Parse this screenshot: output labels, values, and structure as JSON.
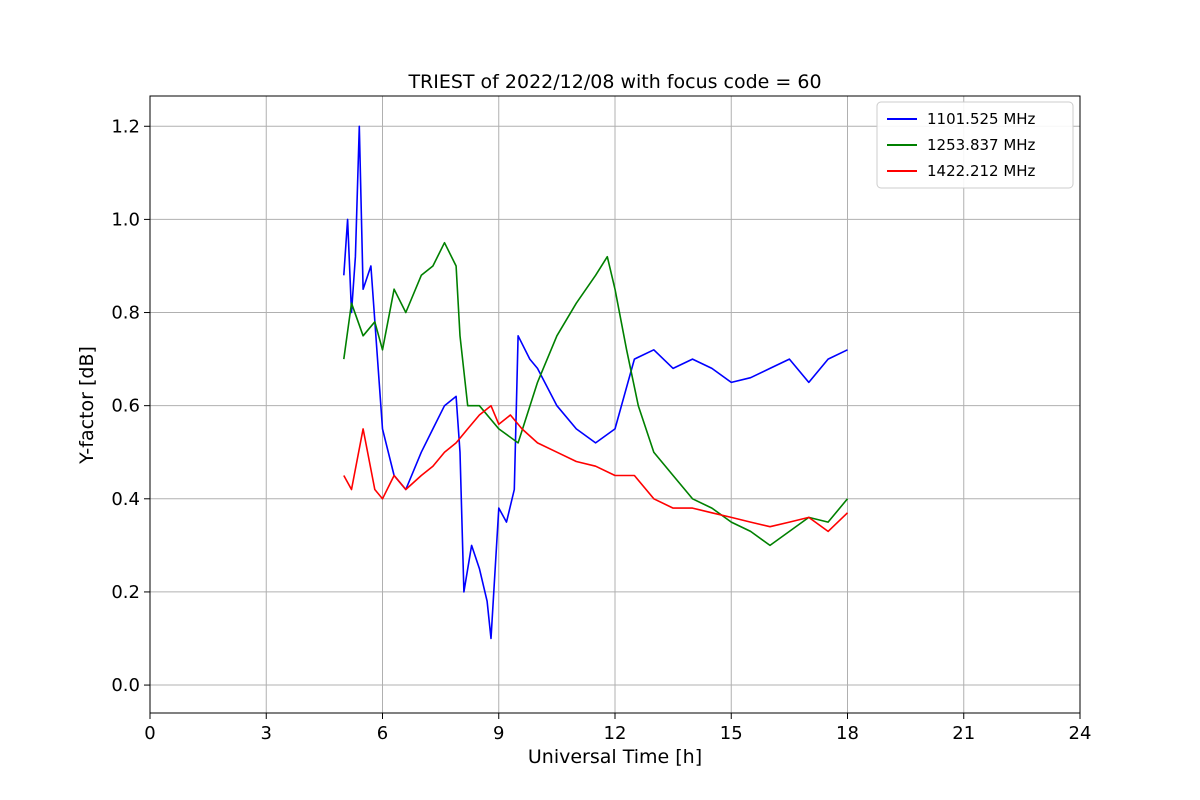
{
  "chart_data": {
    "type": "line",
    "title": "TRIEST of 2022/12/08 with focus code = 60",
    "xlabel": "Universal Time [h]",
    "ylabel": "Y-factor [dB]",
    "xlim": [
      0,
      24
    ],
    "ylim": [
      -0.06,
      1.265
    ],
    "xticks": [
      0,
      3,
      6,
      9,
      12,
      15,
      18,
      21,
      24
    ],
    "yticks": [
      0.0,
      0.2,
      0.4,
      0.6,
      0.8,
      1.0,
      1.2
    ],
    "ytick_labels": [
      "0.0",
      "0.2",
      "0.4",
      "0.6",
      "0.8",
      "1.0",
      "1.2"
    ],
    "grid": true,
    "legend_position": "upper right",
    "series": [
      {
        "name": "1101.525 MHz",
        "color": "#0000ff",
        "x": [
          5.0,
          5.1,
          5.2,
          5.3,
          5.4,
          5.5,
          5.7,
          6.0,
          6.3,
          6.6,
          7.0,
          7.3,
          7.6,
          7.9,
          8.0,
          8.1,
          8.3,
          8.5,
          8.7,
          8.8,
          9.0,
          9.2,
          9.4,
          9.5,
          9.8,
          10.0,
          10.5,
          11.0,
          11.5,
          12.0,
          12.5,
          13.0,
          13.5,
          14.0,
          14.5,
          15.0,
          15.5,
          16.0,
          16.5,
          17.0,
          17.5,
          18.0
        ],
        "values": [
          0.88,
          1.0,
          0.8,
          0.92,
          1.2,
          0.85,
          0.9,
          0.55,
          0.45,
          0.42,
          0.5,
          0.55,
          0.6,
          0.62,
          0.5,
          0.2,
          0.3,
          0.25,
          0.18,
          0.1,
          0.38,
          0.35,
          0.42,
          0.75,
          0.7,
          0.68,
          0.6,
          0.55,
          0.52,
          0.55,
          0.7,
          0.72,
          0.68,
          0.7,
          0.68,
          0.65,
          0.66,
          0.68,
          0.7,
          0.65,
          0.7,
          0.72
        ]
      },
      {
        "name": "1253.837 MHz",
        "color": "#008000",
        "x": [
          5.0,
          5.2,
          5.5,
          5.8,
          6.0,
          6.3,
          6.6,
          7.0,
          7.3,
          7.6,
          7.9,
          8.0,
          8.2,
          8.5,
          9.0,
          9.5,
          10.0,
          10.5,
          11.0,
          11.5,
          11.8,
          12.0,
          12.3,
          12.6,
          13.0,
          13.5,
          14.0,
          14.5,
          15.0,
          15.5,
          16.0,
          16.5,
          17.0,
          17.5,
          18.0
        ],
        "values": [
          0.7,
          0.82,
          0.75,
          0.78,
          0.72,
          0.85,
          0.8,
          0.88,
          0.9,
          0.95,
          0.9,
          0.75,
          0.6,
          0.6,
          0.55,
          0.52,
          0.65,
          0.75,
          0.82,
          0.88,
          0.92,
          0.85,
          0.72,
          0.6,
          0.5,
          0.45,
          0.4,
          0.38,
          0.35,
          0.33,
          0.3,
          0.33,
          0.36,
          0.35,
          0.4
        ]
      },
      {
        "name": "1422.212 MHz",
        "color": "#ff0000",
        "x": [
          5.0,
          5.2,
          5.5,
          5.8,
          6.0,
          6.3,
          6.6,
          7.0,
          7.3,
          7.6,
          7.9,
          8.2,
          8.5,
          8.8,
          9.0,
          9.3,
          9.6,
          10.0,
          10.5,
          11.0,
          11.5,
          12.0,
          12.5,
          13.0,
          13.5,
          14.0,
          14.5,
          15.0,
          15.5,
          16.0,
          16.5,
          17.0,
          17.5,
          18.0
        ],
        "values": [
          0.45,
          0.42,
          0.55,
          0.42,
          0.4,
          0.45,
          0.42,
          0.45,
          0.47,
          0.5,
          0.52,
          0.55,
          0.58,
          0.6,
          0.56,
          0.58,
          0.55,
          0.52,
          0.5,
          0.48,
          0.47,
          0.45,
          0.45,
          0.4,
          0.38,
          0.38,
          0.37,
          0.36,
          0.35,
          0.34,
          0.35,
          0.36,
          0.33,
          0.37
        ]
      }
    ]
  }
}
